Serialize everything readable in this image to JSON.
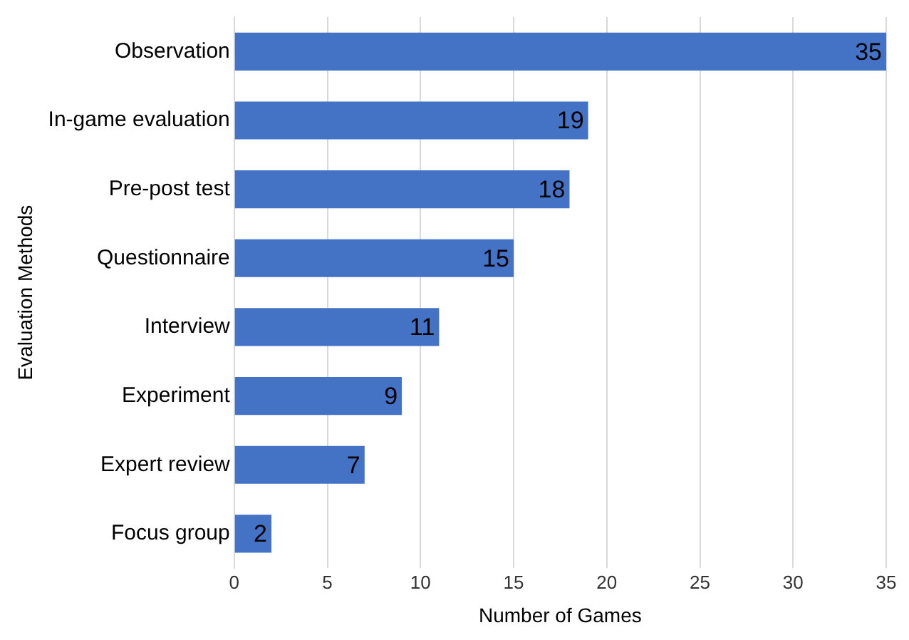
{
  "chart_data": {
    "type": "bar",
    "orientation": "horizontal",
    "xlabel": "Number of Games",
    "ylabel": "Evaluation Methods",
    "categories": [
      "Observation",
      "In-game evaluation",
      "Pre-post test",
      "Questionnaire",
      "Interview",
      "Experiment",
      "Expert review",
      "Focus group"
    ],
    "values": [
      35,
      19,
      18,
      15,
      11,
      9,
      7,
      2
    ],
    "color": "#4472c4",
    "xlim": [
      0,
      35
    ],
    "xticks": [
      0,
      5,
      10,
      15,
      20,
      25,
      30,
      35
    ],
    "grid": "x",
    "data_labels": true,
    "legend": false
  }
}
